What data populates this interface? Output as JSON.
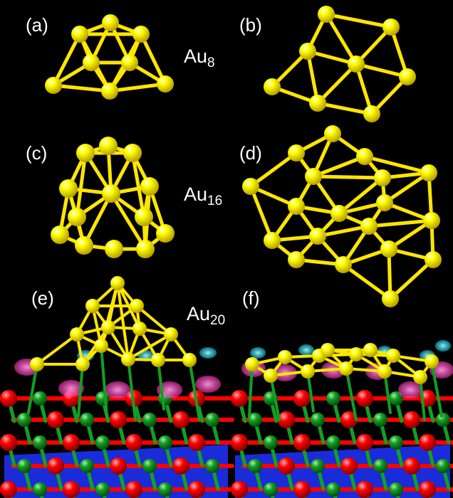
{
  "panels": {
    "a": "(a)",
    "b": "(b)",
    "c": "(c)",
    "d": "(d)",
    "e": "(e)",
    "f": "(f)"
  },
  "clusters": [
    {
      "element": "Au",
      "size": "8"
    },
    {
      "element": "Au",
      "size": "16"
    },
    {
      "element": "Au",
      "size": "20"
    }
  ],
  "colors": {
    "background": "#000000",
    "gold_atom": "#ffff00",
    "bond": "#ffe600",
    "oxygen_atom": "#ff0000",
    "metal_atom": "#11a022",
    "substrate_deep": "#1a2bd9",
    "charge_positive": "#ff66cc",
    "charge_negative": "#33e0ff"
  }
}
